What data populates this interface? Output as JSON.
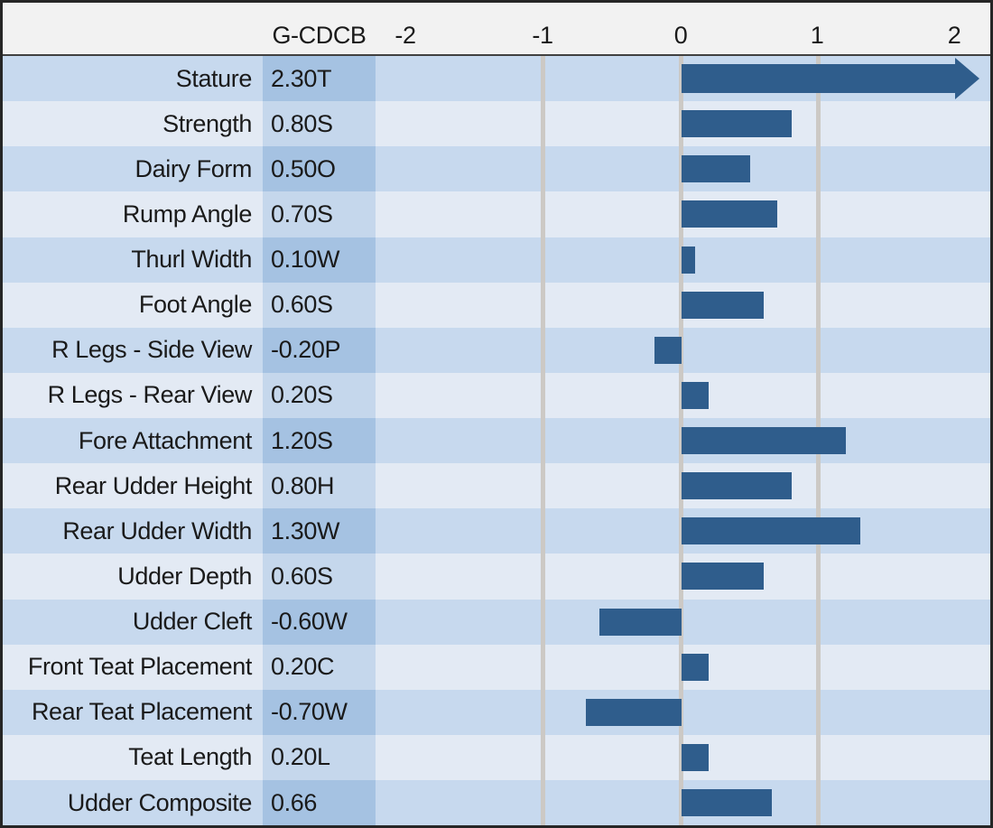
{
  "chart_data": {
    "type": "bar",
    "orientation": "horizontal",
    "title": "",
    "value_column_header": "G-CDCB",
    "tick_labels": [
      "-2",
      "-1",
      "0",
      "1",
      "2"
    ],
    "axis_range": [
      -2.25,
      2.25
    ],
    "gridlines_at": [
      -1,
      0,
      1
    ],
    "legend": "none",
    "categories": [
      "Stature",
      "Strength",
      "Dairy Form",
      "Rump Angle",
      "Thurl Width",
      "Foot Angle",
      "R Legs - Side View",
      "R Legs - Rear View",
      "Fore Attachment",
      "Rear Udder Height",
      "Rear Udder Width",
      "Udder Depth",
      "Udder Cleft",
      "Front Teat Placement",
      "Rear Teat Placement",
      "Teat Length",
      "Udder Composite"
    ],
    "values": [
      2.3,
      0.8,
      0.5,
      0.7,
      0.1,
      0.6,
      -0.2,
      0.2,
      1.2,
      0.8,
      1.3,
      0.6,
      -0.6,
      0.2,
      -0.7,
      0.2,
      0.66
    ],
    "rows": [
      {
        "trait": "Stature",
        "value_label": "2.30T",
        "value": 2.3,
        "overflow_arrow": true
      },
      {
        "trait": "Strength",
        "value_label": "0.80S",
        "value": 0.8
      },
      {
        "trait": "Dairy Form",
        "value_label": "0.50O",
        "value": 0.5
      },
      {
        "trait": "Rump Angle",
        "value_label": "0.70S",
        "value": 0.7
      },
      {
        "trait": "Thurl Width",
        "value_label": "0.10W",
        "value": 0.1
      },
      {
        "trait": "Foot Angle",
        "value_label": "0.60S",
        "value": 0.6
      },
      {
        "trait": "R Legs - Side View",
        "value_label": "-0.20P",
        "value": -0.2
      },
      {
        "trait": "R Legs - Rear View",
        "value_label": "0.20S",
        "value": 0.2
      },
      {
        "trait": "Fore Attachment",
        "value_label": "1.20S",
        "value": 1.2
      },
      {
        "trait": "Rear Udder Height",
        "value_label": "0.80H",
        "value": 0.8
      },
      {
        "trait": "Rear Udder Width",
        "value_label": "1.30W",
        "value": 1.3
      },
      {
        "trait": "Udder Depth",
        "value_label": "0.60S",
        "value": 0.6
      },
      {
        "trait": "Udder Cleft",
        "value_label": "-0.60W",
        "value": -0.6
      },
      {
        "trait": "Front Teat Placement",
        "value_label": "0.20C",
        "value": 0.2
      },
      {
        "trait": "Rear Teat Placement",
        "value_label": "-0.70W",
        "value": -0.7
      },
      {
        "trait": "Teat Length",
        "value_label": "0.20L",
        "value": 0.2
      },
      {
        "trait": "Udder Composite",
        "value_label": "0.66",
        "value": 0.66
      }
    ]
  },
  "colors": {
    "bar": "#2F5D8C",
    "row_stripe_dark": "#C7D9EE",
    "row_stripe_light": "#E3EAF4",
    "value_cell_dark": "#A5C2E2",
    "value_cell_light": "#C5D7EC",
    "gridline": "#CCC9C5",
    "header_background": "#F2F2F2",
    "outer_border": "#262626",
    "text": "#1A1A1A"
  }
}
